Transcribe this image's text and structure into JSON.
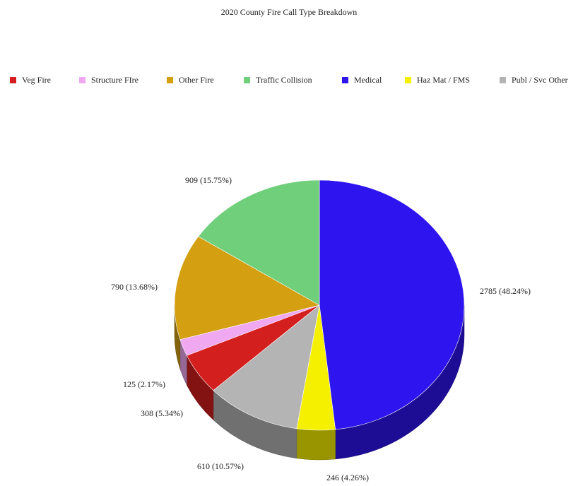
{
  "chart_data": {
    "type": "pie",
    "title": "2020 County Fire Call Type Breakdown",
    "legend_position": "top",
    "three_d": true,
    "slices": [
      {
        "name": "Veg Fire",
        "value": 308,
        "label": "308 (5.34%)",
        "color": "#d41f1f"
      },
      {
        "name": "Structure FIre",
        "value": 125,
        "label": "125 (2.17%)",
        "color": "#f0a8f0"
      },
      {
        "name": "Other Fire",
        "value": 790,
        "label": "790 (13.68%)",
        "color": "#d4a012"
      },
      {
        "name": "Traffic Collision",
        "value": 909,
        "label": "909 (15.75%)",
        "color": "#6fcf7b"
      },
      {
        "name": "Medical",
        "value": 2785,
        "label": "2785 (48.24%)",
        "color": "#2e14ee"
      },
      {
        "name": "Haz Mat / FMS",
        "value": 246,
        "label": "246 (4.26%)",
        "color": "#f5f000"
      },
      {
        "name": "Publ / Svc Other",
        "value": 610,
        "label": "610 (10.57%)",
        "color": "#b4b4b4"
      }
    ]
  }
}
